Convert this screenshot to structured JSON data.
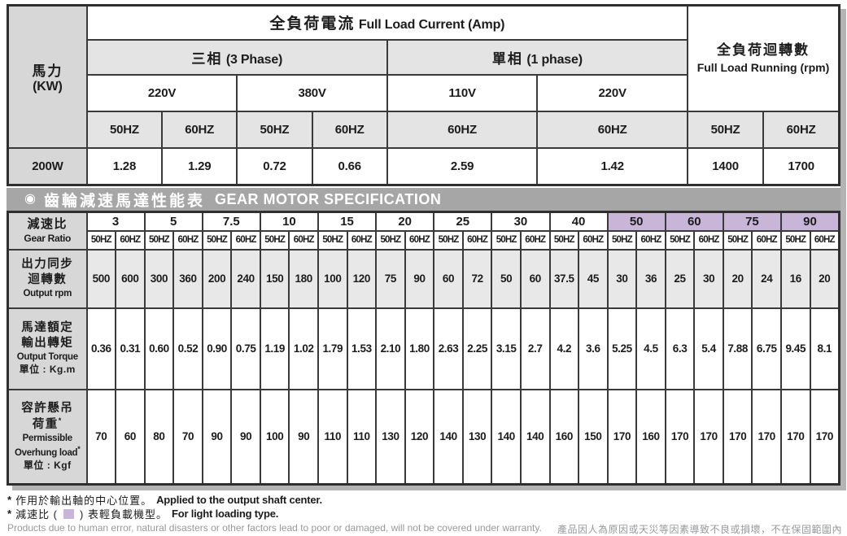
{
  "colors": {
    "header_gray": "#e4e4e4",
    "label_gray": "#d7d7d7",
    "title_band_gray": "#a6a6a6",
    "light_loading_purple": "#c9b5d8",
    "shaded_row_gray": "#e8e8e8",
    "border_dark": "#3a3a3a",
    "shadow_gray": "#b4b4b4",
    "footnote_gray": "#97999b"
  },
  "top_table": {
    "hp": {
      "zh": "馬力",
      "en": "(KW)"
    },
    "full_load_current": {
      "zh": "全負荷電流",
      "en": "Full Load Current (Amp)"
    },
    "three_phase": {
      "zh": "三相",
      "en": "(3 Phase)"
    },
    "single_phase": {
      "zh": "單相",
      "en": "(1 phase)"
    },
    "full_load_running": {
      "zh": "全負荷迴轉數",
      "en": "Full Load Running (rpm)"
    },
    "voltages": {
      "three_phase_1": "220V",
      "three_phase_2": "380V",
      "single_phase_1": "110V",
      "single_phase_2": "220V"
    },
    "freqs": [
      "50HZ",
      "60HZ",
      "50HZ",
      "60HZ",
      "60HZ",
      "60HZ",
      "50HZ",
      "60HZ"
    ],
    "row": {
      "model": "200W",
      "values": [
        "1.28",
        "1.29",
        "0.72",
        "0.66",
        "2.59",
        "1.42",
        "1400",
        "1700"
      ]
    }
  },
  "spec_table": {
    "title": {
      "zh": "齒輪減速馬達性能表",
      "en": "GEAR MOTOR SPECIFICATION"
    },
    "gear_ratio_label": {
      "zh": "減速比",
      "en": "Gear Ratio"
    },
    "freq_pair": [
      "50HZ",
      "60HZ"
    ],
    "ratios": [
      {
        "v": "3",
        "light": false
      },
      {
        "v": "5",
        "light": false
      },
      {
        "v": "7.5",
        "light": false
      },
      {
        "v": "10",
        "light": false
      },
      {
        "v": "15",
        "light": false
      },
      {
        "v": "20",
        "light": false
      },
      {
        "v": "25",
        "light": false
      },
      {
        "v": "30",
        "light": false
      },
      {
        "v": "40",
        "light": false
      },
      {
        "v": "50",
        "light": true
      },
      {
        "v": "60",
        "light": true
      },
      {
        "v": "75",
        "light": true
      },
      {
        "v": "90",
        "light": true
      }
    ],
    "rows": [
      {
        "key": "output-rpm",
        "shaded": true,
        "label_lines": [
          {
            "t": "出力同步",
            "c": "zh"
          },
          {
            "t": "迴轉數",
            "c": "zh"
          },
          {
            "t": "Output rpm",
            "c": "en"
          }
        ],
        "values": [
          "500",
          "600",
          "300",
          "360",
          "200",
          "240",
          "150",
          "180",
          "100",
          "120",
          "75",
          "90",
          "60",
          "72",
          "50",
          "60",
          "37.5",
          "45",
          "30",
          "36",
          "25",
          "30",
          "20",
          "24",
          "16",
          "20"
        ]
      },
      {
        "key": "output-torque",
        "shaded": false,
        "label_lines": [
          {
            "t": "馬達額定",
            "c": "zh"
          },
          {
            "t": "輸出轉矩",
            "c": "zh"
          },
          {
            "t": "Output Torque",
            "c": "en"
          },
          {
            "t": "單位 : Kg.m",
            "c": "unit"
          }
        ],
        "values": [
          "0.36",
          "0.31",
          "0.60",
          "0.52",
          "0.90",
          "0.75",
          "1.19",
          "1.02",
          "1.79",
          "1.53",
          "2.10",
          "1.80",
          "2.63",
          "2.25",
          "3.15",
          "2.7",
          "4.2",
          "3.6",
          "5.25",
          "4.5",
          "6.3",
          "5.4",
          "7.88",
          "6.75",
          "9.45",
          "8.1"
        ]
      },
      {
        "key": "overhung-load",
        "shaded": false,
        "label_lines": [
          {
            "t": "容許懸吊",
            "c": "zh"
          },
          {
            "t": "荷重",
            "c": "zh",
            "sup": "*"
          },
          {
            "t": "Permissible",
            "c": "en"
          },
          {
            "t": "Overhung load",
            "c": "en",
            "sup": "*"
          },
          {
            "t": "單位 : Kgf",
            "c": "unit"
          }
        ],
        "values": [
          "70",
          "60",
          "80",
          "70",
          "90",
          "90",
          "100",
          "90",
          "110",
          "110",
          "130",
          "120",
          "140",
          "130",
          "140",
          "140",
          "160",
          "150",
          "170",
          "160",
          "170",
          "170",
          "170",
          "170",
          "170",
          "170"
        ]
      }
    ]
  },
  "footnotes": {
    "shaft": {
      "marker": "*",
      "zh": "作用於輸出軸的中心位置。",
      "en": "Applied to the output shaft center."
    },
    "light": {
      "marker": "*",
      "pre": "減速比 (",
      "post": ") 表輕負載機型。",
      "en": "For light loading type."
    },
    "warranty": {
      "en": "Products due to human error, natural disasters or other factors lead to poor or damaged, will not be covered under warranty.",
      "zh": "產品因人為原因或天災等因素導致不良或損壞，不在保固範圍內"
    }
  },
  "icons": {
    "title_bullet": "bullseye-icon"
  }
}
